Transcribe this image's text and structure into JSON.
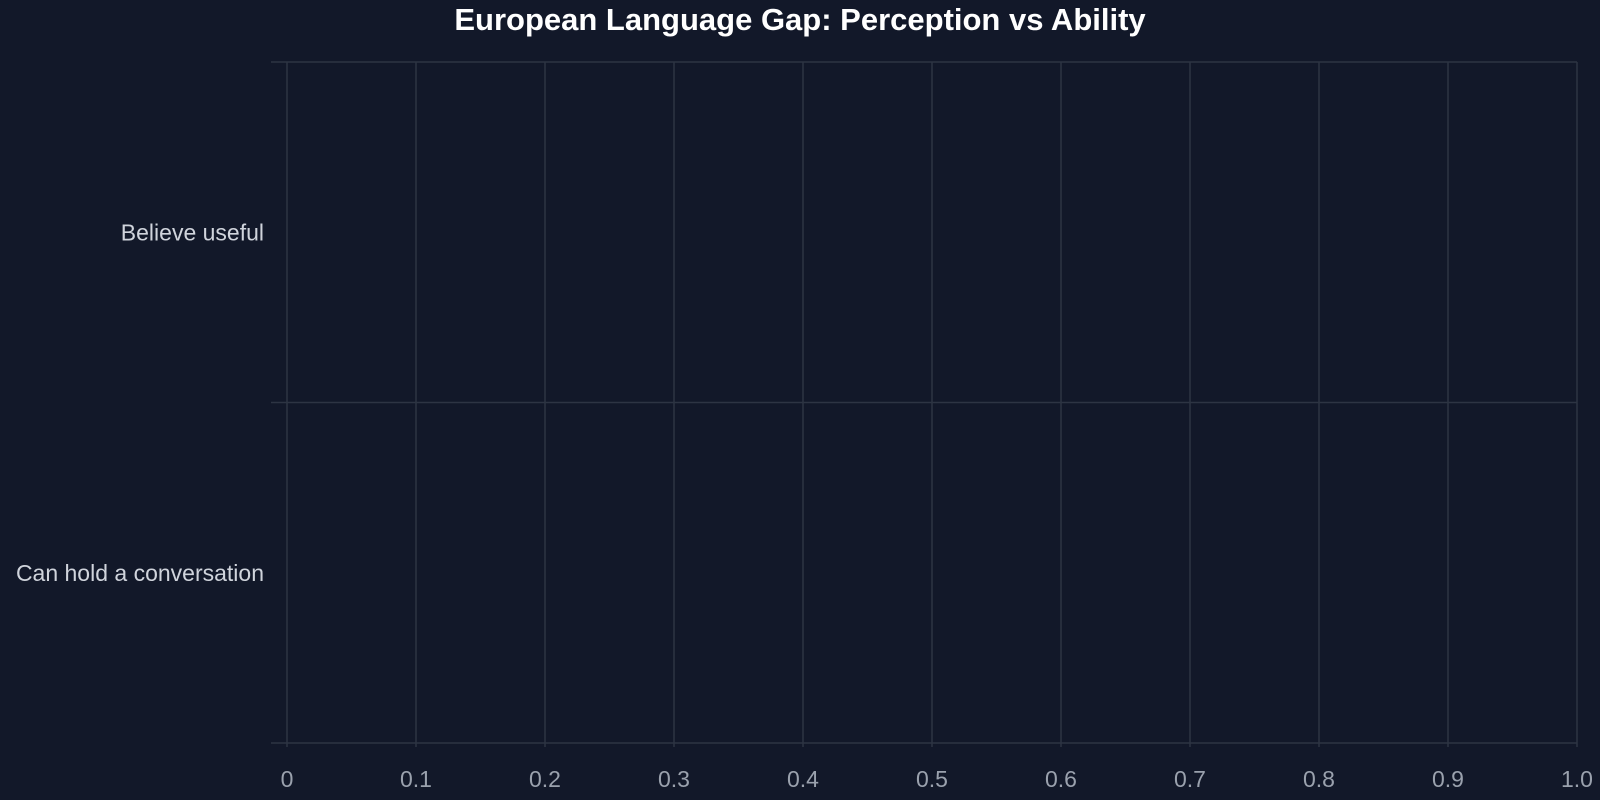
{
  "chart_data": {
    "type": "bar",
    "orientation": "horizontal",
    "title": "European Language Gap: Perception vs Ability",
    "categories": [
      "Believe useful",
      "Can hold a conversation"
    ],
    "series": [],
    "xlabel": "",
    "ylabel": "",
    "xlim": [
      0,
      1.0
    ],
    "xticks": [
      "0",
      "0.1",
      "0.2",
      "0.3",
      "0.4",
      "0.5",
      "0.6",
      "0.7",
      "0.8",
      "0.9",
      "1.0"
    ],
    "grid": true,
    "legend": "none",
    "colors": {
      "background": "#121829",
      "grid": "#2d3443",
      "title": "#ffffff",
      "tick_label": "#9aa1ad",
      "category_label": "#d0d4dc"
    }
  }
}
